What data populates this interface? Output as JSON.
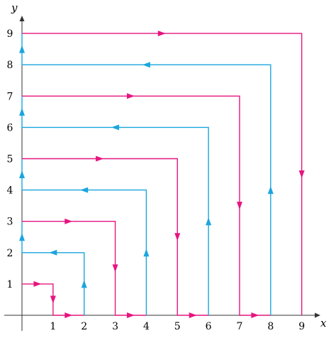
{
  "diagram": {
    "axes": {
      "x_label": "x",
      "y_label": "y",
      "x_ticks": [
        "1",
        "2",
        "3",
        "4",
        "5",
        "6",
        "7",
        "8",
        "9"
      ],
      "y_ticks": [
        "1",
        "2",
        "3",
        "4",
        "5",
        "6",
        "7",
        "8",
        "9"
      ]
    },
    "colors": {
      "magenta": "#e6157f",
      "cyan": "#1aa5dd",
      "axis": "#333333"
    },
    "paths": [
      {
        "name": "path-1",
        "color": "magenta",
        "points": [
          [
            0,
            1
          ],
          [
            1,
            1
          ],
          [
            1,
            0
          ],
          [
            2,
            0
          ]
        ],
        "arrows": [
          [
            0,
            1,
            1,
            1
          ],
          [
            1,
            1,
            1,
            0
          ],
          [
            1,
            0,
            2,
            0
          ]
        ]
      },
      {
        "name": "path-2",
        "color": "cyan",
        "points": [
          [
            2,
            0
          ],
          [
            2,
            2
          ],
          [
            0,
            2
          ],
          [
            0,
            3
          ]
        ],
        "arrows": [
          [
            2,
            0,
            2,
            2
          ],
          [
            2,
            2,
            0,
            2
          ],
          [
            0,
            2,
            0,
            3
          ]
        ]
      },
      {
        "name": "path-3",
        "color": "magenta",
        "points": [
          [
            0,
            3
          ],
          [
            3,
            3
          ],
          [
            3,
            0
          ],
          [
            4,
            0
          ]
        ],
        "arrows": [
          [
            0,
            3,
            3,
            3
          ],
          [
            3,
            3,
            3,
            0
          ],
          [
            3,
            0,
            4,
            0
          ]
        ]
      },
      {
        "name": "path-4",
        "color": "cyan",
        "points": [
          [
            4,
            0
          ],
          [
            4,
            4
          ],
          [
            0,
            4
          ],
          [
            0,
            5
          ]
        ],
        "arrows": [
          [
            4,
            0,
            4,
            4
          ],
          [
            4,
            4,
            0,
            4
          ],
          [
            0,
            4,
            0,
            5
          ]
        ]
      },
      {
        "name": "path-5",
        "color": "magenta",
        "points": [
          [
            0,
            5
          ],
          [
            5,
            5
          ],
          [
            5,
            0
          ],
          [
            6,
            0
          ]
        ],
        "arrows": [
          [
            0,
            5,
            5,
            5
          ],
          [
            5,
            5,
            5,
            0
          ],
          [
            5,
            0,
            6,
            0
          ]
        ]
      },
      {
        "name": "path-6",
        "color": "cyan",
        "points": [
          [
            6,
            0
          ],
          [
            6,
            6
          ],
          [
            0,
            6
          ],
          [
            0,
            7
          ]
        ],
        "arrows": [
          [
            6,
            0,
            6,
            6
          ],
          [
            6,
            6,
            0,
            6
          ],
          [
            0,
            6,
            0,
            7
          ]
        ]
      },
      {
        "name": "path-7",
        "color": "magenta",
        "points": [
          [
            0,
            7
          ],
          [
            7,
            7
          ],
          [
            7,
            0
          ],
          [
            8,
            0
          ]
        ],
        "arrows": [
          [
            0,
            7,
            7,
            7
          ],
          [
            7,
            7,
            7,
            0
          ],
          [
            7,
            0,
            8,
            0
          ]
        ]
      },
      {
        "name": "path-8",
        "color": "cyan",
        "points": [
          [
            8,
            0
          ],
          [
            8,
            8
          ],
          [
            0,
            8
          ],
          [
            0,
            9
          ]
        ],
        "arrows": [
          [
            8,
            0,
            8,
            8
          ],
          [
            8,
            8,
            0,
            8
          ],
          [
            0,
            8,
            0,
            9
          ]
        ]
      },
      {
        "name": "path-9",
        "color": "magenta",
        "points": [
          [
            0,
            9
          ],
          [
            9,
            9
          ],
          [
            9,
            0
          ]
        ],
        "arrows": [
          [
            0,
            9,
            9,
            9
          ],
          [
            9,
            9,
            9,
            0
          ]
        ]
      }
    ]
  }
}
